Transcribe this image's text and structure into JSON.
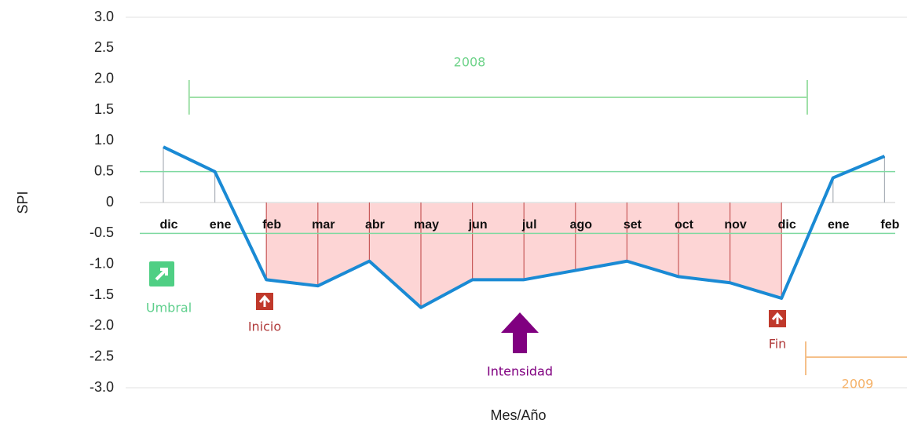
{
  "chart_data": {
    "type": "line",
    "y_label": "SPI",
    "x_label": "Mes/Año",
    "categories": [
      "dic",
      "ene",
      "feb",
      "mar",
      "abr",
      "may",
      "jun",
      "jul",
      "ago",
      "set",
      "oct",
      "nov",
      "dic",
      "ene",
      "feb"
    ],
    "values": [
      0.9,
      0.5,
      -1.25,
      -1.35,
      -0.95,
      -1.7,
      -1.25,
      -1.25,
      -1.1,
      -0.95,
      -1.2,
      -1.3,
      -1.55,
      0.4,
      0.75
    ],
    "color": "#1a8ad4",
    "ylim": [
      -3,
      3
    ],
    "yticks": [
      {
        "value": 3,
        "label": "3.0"
      },
      2.5,
      {
        "value": 2,
        "label": "2.0"
      },
      1.5,
      {
        "value": 1,
        "label": "1.0"
      },
      0.5,
      0,
      -0.5,
      {
        "value": -1,
        "label": "-1.0"
      },
      -1.5,
      {
        "value": -2,
        "label": "-2.0"
      },
      -2.5,
      {
        "value": -3,
        "label": "-3.0"
      }
    ],
    "thresholds": [
      0.5,
      -0.5
    ],
    "threshold_color": "#7ed9a0",
    "deficit_color": "#fdd5d5",
    "annotations": {
      "year_start": "2008",
      "year_end": "2009",
      "umbral": "Umbral",
      "inicio": "Inicio",
      "fin": "Fin",
      "intensidad": "Intensidad"
    }
  }
}
